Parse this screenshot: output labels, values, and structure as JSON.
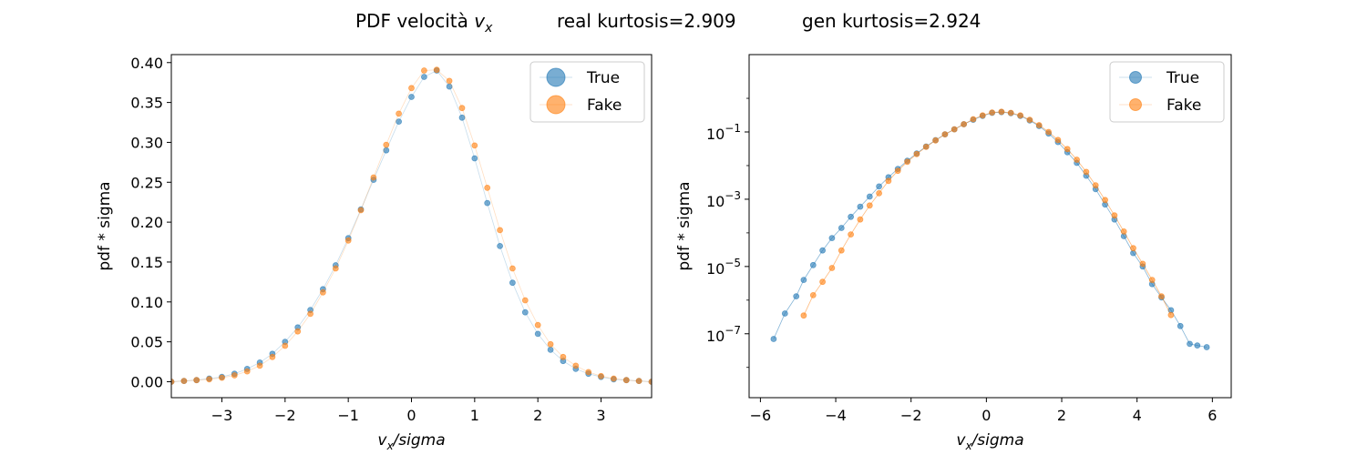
{
  "title": {
    "prefix": "PDF velocità ",
    "var_base": "v",
    "var_sub": "x",
    "real": "real kurtosis=2.909",
    "gen": "gen kurtosis=2.924"
  },
  "colors": {
    "true": "#1f77b4",
    "fake": "#ff7f0e"
  },
  "chart_data": [
    {
      "type": "scatter",
      "scale": "linear",
      "xlim": [
        -3.8,
        3.8
      ],
      "ylim": [
        -0.02,
        0.41
      ],
      "xticks": [
        -3,
        -2,
        -1,
        0,
        1,
        2,
        3
      ],
      "xtick_labels": [
        "−3",
        "−2",
        "−1",
        "0",
        "1",
        "2",
        "3"
      ],
      "yticks": [
        0.0,
        0.05,
        0.1,
        0.15,
        0.2,
        0.25,
        0.3,
        0.35,
        0.4
      ],
      "ytick_labels": [
        "0.00",
        "0.05",
        "0.10",
        "0.15",
        "0.20",
        "0.25",
        "0.30",
        "0.35",
        "0.40"
      ],
      "xlabel": {
        "base": "v",
        "sub": "x",
        "rest": "/sigma"
      },
      "ylabel": "pdf * sigma",
      "legend": {
        "position": "top-right",
        "entries": [
          "True",
          "Fake"
        ]
      },
      "series": [
        {
          "name": "True",
          "x": [
            -3.8,
            -3.6,
            -3.4,
            -3.2,
            -3.0,
            -2.8,
            -2.6,
            -2.4,
            -2.2,
            -2.0,
            -1.8,
            -1.6,
            -1.4,
            -1.2,
            -1.0,
            -0.8,
            -0.6,
            -0.4,
            -0.2,
            0.0,
            0.2,
            0.4,
            0.6,
            0.8,
            1.0,
            1.2,
            1.4,
            1.6,
            1.8,
            2.0,
            2.2,
            2.4,
            2.6,
            2.8,
            3.0,
            3.2,
            3.4,
            3.6,
            3.8
          ],
          "y": [
            0.0,
            0.001,
            0.002,
            0.004,
            0.006,
            0.01,
            0.016,
            0.024,
            0.035,
            0.05,
            0.068,
            0.09,
            0.116,
            0.146,
            0.18,
            0.216,
            0.253,
            0.29,
            0.326,
            0.357,
            0.382,
            0.39,
            0.37,
            0.331,
            0.28,
            0.224,
            0.17,
            0.124,
            0.087,
            0.06,
            0.04,
            0.026,
            0.016,
            0.01,
            0.006,
            0.003,
            0.002,
            0.001,
            0.0
          ]
        },
        {
          "name": "Fake",
          "x": [
            -3.8,
            -3.6,
            -3.4,
            -3.2,
            -3.0,
            -2.8,
            -2.6,
            -2.4,
            -2.2,
            -2.0,
            -1.8,
            -1.6,
            -1.4,
            -1.2,
            -1.0,
            -0.8,
            -0.6,
            -0.4,
            -0.2,
            0.0,
            0.2,
            0.4,
            0.6,
            0.8,
            1.0,
            1.2,
            1.4,
            1.6,
            1.8,
            2.0,
            2.2,
            2.4,
            2.6,
            2.8,
            3.0,
            3.2,
            3.4,
            3.6,
            3.8
          ],
          "y": [
            0.0,
            0.001,
            0.002,
            0.003,
            0.005,
            0.008,
            0.013,
            0.02,
            0.031,
            0.045,
            0.063,
            0.085,
            0.112,
            0.142,
            0.177,
            0.215,
            0.256,
            0.297,
            0.336,
            0.368,
            0.39,
            0.391,
            0.377,
            0.343,
            0.296,
            0.243,
            0.19,
            0.142,
            0.102,
            0.071,
            0.047,
            0.031,
            0.02,
            0.012,
            0.007,
            0.004,
            0.002,
            0.001,
            0.0
          ]
        }
      ]
    },
    {
      "type": "line",
      "scale": "log",
      "xlim": [
        -6.3,
        6.5
      ],
      "ylim_exp": [
        -8.9,
        1.3
      ],
      "xticks": [
        -6,
        -4,
        -2,
        0,
        2,
        4,
        6
      ],
      "xtick_labels": [
        "−6",
        "−4",
        "−2",
        "0",
        "2",
        "4",
        "6"
      ],
      "yticks": [
        -1,
        -3,
        -5,
        -7
      ],
      "ytick_labels": [
        {
          "base": "10",
          "exp": "−1"
        },
        {
          "base": "10",
          "exp": "−3"
        },
        {
          "base": "10",
          "exp": "−5"
        },
        {
          "base": "10",
          "exp": "−7"
        }
      ],
      "xlabel": {
        "base": "v",
        "sub": "x",
        "rest": "/sigma"
      },
      "ylabel": "pdf * sigma",
      "legend": {
        "position": "top-right",
        "entries": [
          "True",
          "Fake"
        ]
      },
      "series": [
        {
          "name": "True",
          "x": [
            -5.65,
            -5.35,
            -5.05,
            -4.85,
            -4.6,
            -4.35,
            -4.1,
            -3.85,
            -3.6,
            -3.35,
            -3.1,
            -2.85,
            -2.6,
            -2.35,
            -2.1,
            -1.85,
            -1.6,
            -1.35,
            -1.1,
            -0.85,
            -0.6,
            -0.35,
            -0.1,
            0.15,
            0.4,
            0.65,
            0.9,
            1.15,
            1.4,
            1.65,
            1.9,
            2.15,
            2.4,
            2.65,
            2.9,
            3.15,
            3.4,
            3.65,
            3.9,
            4.15,
            4.4,
            4.65,
            4.9,
            5.15,
            5.4,
            5.6,
            5.85
          ],
          "y": [
            7e-08,
            4e-07,
            1.3e-06,
            4e-06,
            1.1e-05,
            3e-05,
            7e-05,
            0.00014,
            0.0003,
            0.0006,
            0.0012,
            0.0024,
            0.0045,
            0.008,
            0.014,
            0.023,
            0.037,
            0.057,
            0.085,
            0.12,
            0.17,
            0.23,
            0.3,
            0.37,
            0.39,
            0.36,
            0.3,
            0.22,
            0.15,
            0.09,
            0.05,
            0.025,
            0.012,
            0.005,
            0.002,
            0.0007,
            0.00025,
            8e-05,
            2.5e-05,
            1e-05,
            3e-06,
            1.2e-06,
            5e-07,
            1.7e-07,
            5e-08,
            4.5e-08,
            4e-08
          ]
        },
        {
          "name": "Fake",
          "x": [
            -4.85,
            -4.6,
            -4.35,
            -4.1,
            -3.85,
            -3.6,
            -3.35,
            -3.1,
            -2.85,
            -2.6,
            -2.35,
            -2.1,
            -1.85,
            -1.6,
            -1.35,
            -1.1,
            -0.85,
            -0.6,
            -0.35,
            -0.1,
            0.15,
            0.4,
            0.65,
            0.9,
            1.15,
            1.4,
            1.65,
            1.9,
            2.15,
            2.4,
            2.65,
            2.9,
            3.15,
            3.4,
            3.65,
            3.9,
            4.15,
            4.4,
            4.65,
            4.9
          ],
          "y": [
            3.5e-07,
            1.4e-06,
            3.5e-06,
            9e-06,
            3e-05,
            9e-05,
            0.00025,
            0.00065,
            0.0015,
            0.0035,
            0.007,
            0.013,
            0.022,
            0.036,
            0.056,
            0.085,
            0.12,
            0.17,
            0.24,
            0.31,
            0.38,
            0.4,
            0.37,
            0.31,
            0.23,
            0.16,
            0.1,
            0.058,
            0.031,
            0.015,
            0.0065,
            0.0026,
            0.00095,
            0.00033,
            0.00011,
            3.5e-05,
            1.2e-05,
            4e-06,
            1.3e-06,
            3.6e-07
          ]
        }
      ]
    }
  ]
}
